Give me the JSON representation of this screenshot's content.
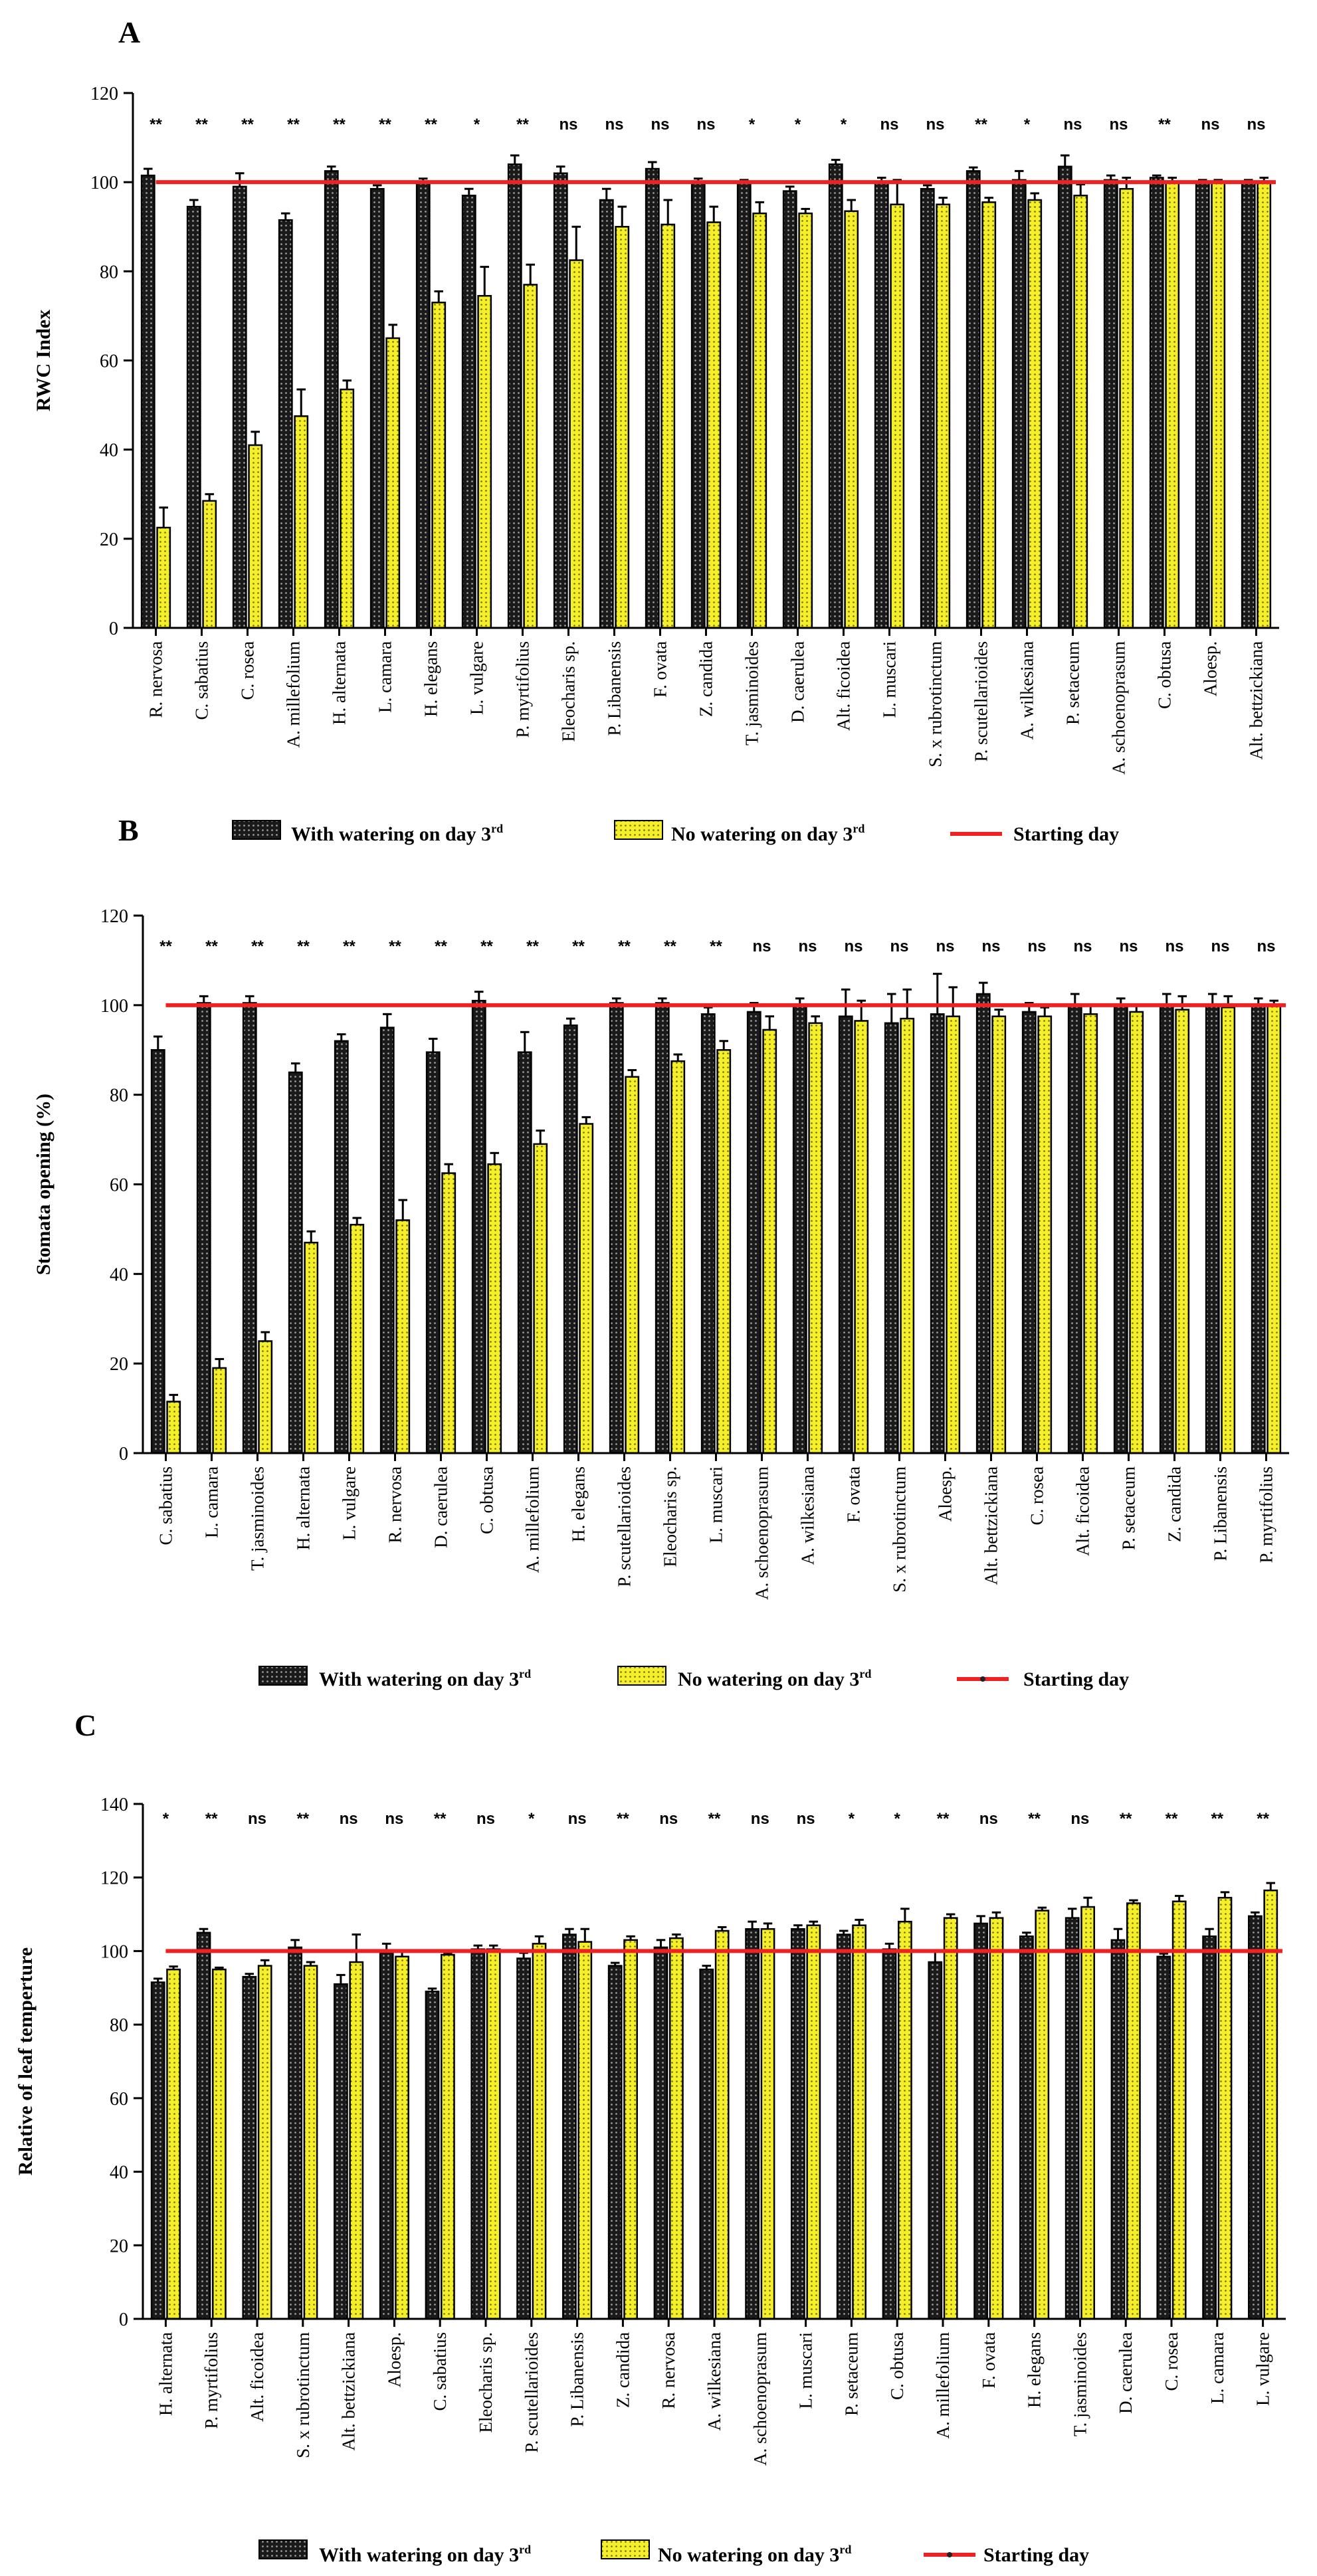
{
  "chart_data": [
    {
      "panel": "A",
      "type": "bar",
      "ylabel": "RWC Index",
      "ylim": [
        0,
        120
      ],
      "yticks": [
        0,
        20,
        40,
        60,
        80,
        100,
        120
      ],
      "reference_line": {
        "value": 100,
        "color": "#ee2222",
        "label": "Starting day"
      },
      "categories": [
        "R. nervosa",
        "C. sabatius",
        "C. rosea",
        "A. millefolium",
        "H. alternata",
        "L. camara",
        "H. elegans",
        "L. vulgare",
        "P. myrtifolius",
        "Eleocharis sp.",
        "P. Libanensis",
        "F. ovata",
        "Z. candida",
        "T. jasminoides",
        "D. caerulea",
        "Alt. ficoidea",
        "L. muscari",
        "S. x rubrotinctum",
        "P. scutellarioides",
        "A. wilkesiana",
        "P. setaceum",
        "A. schoenoprasum",
        "C. obtusa",
        "Aloesp.",
        "Alt. bettzickiana"
      ],
      "significance": [
        "**",
        "**",
        "**",
        "**",
        "**",
        "**",
        "**",
        "*",
        "**",
        "ns",
        "ns",
        "ns",
        "ns",
        "*",
        "*",
        "*",
        "ns",
        "ns",
        "**",
        "*",
        "ns",
        "ns",
        "**",
        "ns",
        "ns"
      ],
      "series": [
        {
          "name": "With watering on day 3rd",
          "color": "#2b2b2b",
          "values": [
            101.5,
            94.5,
            99,
            91.5,
            102.5,
            98.5,
            100,
            97,
            104,
            102,
            96,
            103,
            100,
            100,
            98,
            104,
            100,
            98.5,
            102.5,
            100.5,
            103.5,
            100.5,
            101,
            100,
            100
          ],
          "errors": [
            1.5,
            1.5,
            3,
            1.5,
            1,
            0.8,
            0.8,
            1.5,
            2,
            1.5,
            2.5,
            1.5,
            0.8,
            0.5,
            1,
            1,
            1,
            0.8,
            0.8,
            2,
            2.5,
            1,
            0.5,
            0.5,
            0.5
          ]
        },
        {
          "name": "No watering on day 3rd",
          "color": "#f5ef2a",
          "values": [
            22.5,
            28.5,
            41,
            47.5,
            53.5,
            65,
            73,
            74.5,
            77,
            82.5,
            90,
            90.5,
            91,
            93,
            93,
            93.5,
            95,
            95,
            95.5,
            96,
            97,
            98.5,
            100,
            100,
            100
          ],
          "errors": [
            4.5,
            1.5,
            3,
            6,
            2,
            3,
            2.5,
            6.5,
            4.5,
            7.5,
            4.5,
            5.5,
            3.5,
            2.5,
            1,
            2.5,
            5.5,
            1.5,
            1,
            1.5,
            2.5,
            2.5,
            1,
            0.5,
            1
          ]
        }
      ],
      "legend": [
        "With watering on day 3rd",
        "No watering on day 3rd",
        "Starting day"
      ],
      "legend_placement": "bottom"
    },
    {
      "panel": "B",
      "type": "bar",
      "ylabel": "Stomata opening (%)",
      "ylim": [
        0,
        120
      ],
      "yticks": [
        0,
        20,
        40,
        60,
        80,
        100,
        120
      ],
      "reference_line": {
        "value": 100,
        "color": "#ee2222",
        "label": "Starting day"
      },
      "categories": [
        "C. sabatius",
        "L. camara",
        "T. jasminoides",
        "H. alternata",
        "L. vulgare",
        "R. nervosa",
        "D. caerulea",
        "C. obtusa",
        "A. millefolium",
        "H. elegans",
        "P. scutellarioides",
        "Eleocharis sp.",
        "L. muscari",
        "A. schoenoprasum",
        "A. wilkesiana",
        "F. ovata",
        "S. x rubrotinctum",
        "Aloesp.",
        "Alt. bettzickiana",
        "C. rosea",
        "Alt. ficoidea",
        "P. setaceum",
        "Z. candida",
        "P. Libanensis",
        "P. myrtifolius"
      ],
      "significance": [
        "**",
        "**",
        "**",
        "**",
        "**",
        "**",
        "**",
        "**",
        "**",
        "**",
        "**",
        "**",
        "**",
        "ns",
        "ns",
        "ns",
        "ns",
        "ns",
        "ns",
        "ns",
        "ns",
        "ns",
        "ns",
        "ns",
        "ns"
      ],
      "series": [
        {
          "name": "With watering on day 3rd",
          "color": "#2b2b2b",
          "values": [
            90,
            100.5,
            100.5,
            85,
            92,
            95,
            89.5,
            101,
            89.5,
            95.5,
            100.5,
            100.5,
            98,
            98.5,
            100,
            97.5,
            96,
            98,
            102.5,
            98.5,
            100,
            100,
            100,
            100,
            100
          ],
          "errors": [
            3,
            1.5,
            1.5,
            2,
            1.5,
            3,
            3,
            2,
            4.5,
            1.5,
            1,
            1,
            1.5,
            2,
            1.5,
            6,
            6.5,
            9,
            2.5,
            2,
            2.5,
            1.5,
            2.5,
            2.5,
            1.5
          ]
        },
        {
          "name": "No watering on day 3rd",
          "color": "#f5ef2a",
          "values": [
            11.5,
            19,
            25,
            47,
            51,
            52,
            62.5,
            64.5,
            69,
            73.5,
            84,
            87.5,
            90,
            94.5,
            96,
            96.5,
            97,
            97.5,
            97.5,
            97.5,
            98,
            98.5,
            99,
            99.5,
            100
          ],
          "errors": [
            1.5,
            2,
            2,
            2.5,
            1.5,
            4.5,
            2,
            2.5,
            3,
            1.5,
            1.5,
            1.5,
            2,
            3,
            1.5,
            4.5,
            6.5,
            6.5,
            1.5,
            2,
            2,
            1.5,
            3,
            2.5,
            1
          ]
        }
      ],
      "legend": [
        "With watering on day 3rd",
        "No watering on day 3rd",
        "Starting day"
      ],
      "legend_placement": "bottom"
    },
    {
      "panel": "C",
      "type": "bar",
      "ylabel": "Relative of leaf temperture",
      "ylim": [
        0,
        140
      ],
      "yticks": [
        0,
        20,
        40,
        60,
        80,
        100,
        120,
        140
      ],
      "reference_line": {
        "value": 100,
        "color": "#ee2222",
        "label": "Starting day"
      },
      "categories": [
        "H. alternata",
        "P. myrtifolius",
        "Alt. ficoidea",
        "S. x rubrotinctum",
        "Alt. bettzickiana",
        "Aloesp.",
        "C. sabatius",
        "Eleocharis sp.",
        "P. scutellarioides",
        "P. Libanensis",
        "Z. candida",
        "R. nervosa",
        "A. wilkesiana",
        "A. schoenoprasum",
        "L. muscari",
        "P. setaceum",
        "C. obtusa",
        "A. millefolium",
        "F. ovata",
        "H. elegans",
        "T. jasminoides",
        "D. caerulea",
        "C. rosea",
        "L. camara",
        "L. vulgare"
      ],
      "significance": [
        "*",
        "**",
        "ns",
        "**",
        "ns",
        "ns",
        "**",
        "ns",
        "*",
        "ns",
        "**",
        "ns",
        "**",
        "ns",
        "ns",
        "*",
        "*",
        "**",
        "ns",
        "**",
        "ns",
        "**",
        "**",
        "**",
        "**"
      ],
      "series": [
        {
          "name": "With watering on day 3rd",
          "color": "#2b2b2b",
          "values": [
            91.5,
            105,
            93,
            101,
            91,
            99.5,
            89,
            100.5,
            98,
            104.5,
            96,
            101,
            95,
            106,
            106,
            104.5,
            100.5,
            97,
            107.5,
            104,
            109,
            103,
            98.5,
            104,
            109.5
          ],
          "errors": [
            1,
            1,
            0.8,
            2,
            2.5,
            2.5,
            0.8,
            1,
            1.5,
            1.5,
            0.8,
            2,
            1,
            2,
            1,
            1,
            1.5,
            3,
            2,
            1,
            2.5,
            3,
            0.8,
            2,
            1
          ]
        },
        {
          "name": "No watering on day 3rd",
          "color": "#f5ef2a",
          "values": [
            95,
            95,
            96,
            96,
            97,
            98.5,
            99,
            100.5,
            102,
            102.5,
            103,
            103.5,
            105.5,
            106,
            107,
            107,
            108,
            109,
            109,
            111,
            112,
            113,
            113.5,
            114.5,
            116.5
          ],
          "errors": [
            0.8,
            0.5,
            1.5,
            1,
            7.5,
            1.5,
            0.5,
            1,
            2,
            3.5,
            1,
            1,
            1,
            1.5,
            1,
            1.5,
            3.5,
            1,
            1.5,
            0.8,
            2.5,
            0.8,
            1.5,
            1.5,
            2
          ]
        }
      ],
      "legend": [
        "With watering on day 3rd",
        "No watering on day 3rd",
        "Starting day"
      ],
      "legend_placement": "bottom"
    }
  ]
}
